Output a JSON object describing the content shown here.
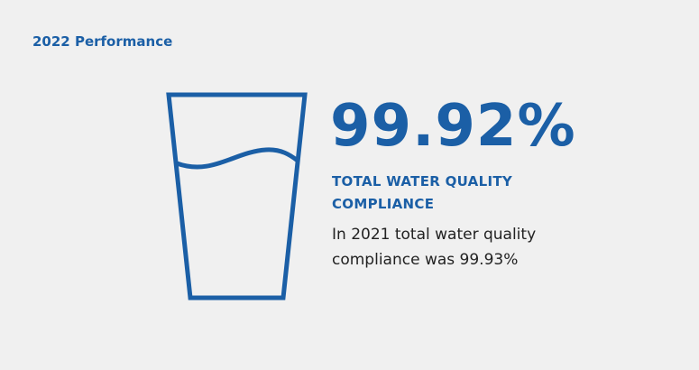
{
  "header": {
    "title": "2022 Performance"
  },
  "stat": {
    "value": "99.92%",
    "label": "TOTAL WATER QUALITY COMPLIANCE",
    "note": "In 2021 total water quality compliance was 99.93%"
  }
}
